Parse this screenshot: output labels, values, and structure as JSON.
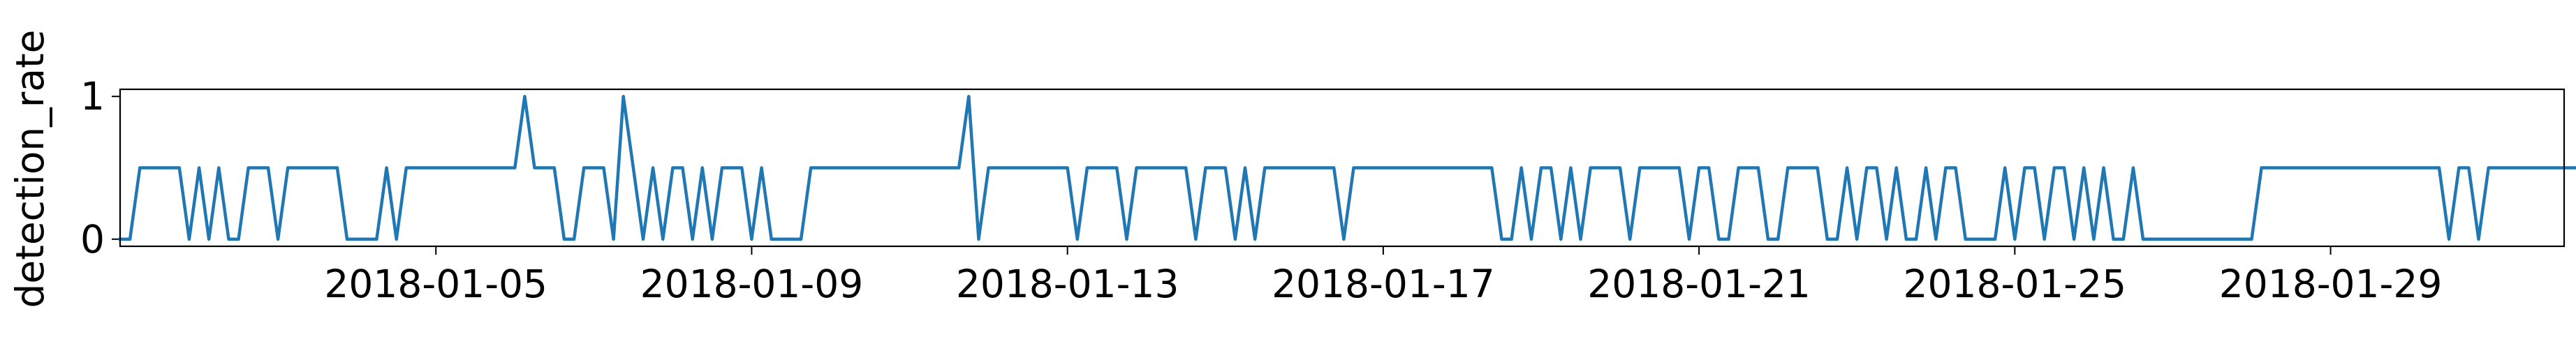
{
  "chart_data": {
    "type": "line",
    "title": "",
    "xlabel": "",
    "ylabel": "detection_rate",
    "x_start": "2018-01-01",
    "x_end": "2018-01-31",
    "xlim": [
      "2018-01-01T00:00",
      "2018-01-31T23:00"
    ],
    "ylim": [
      -0.05,
      1.05
    ],
    "x_ticks": [
      "2018-01-05",
      "2018-01-09",
      "2018-01-13",
      "2018-01-17",
      "2018-01-21",
      "2018-01-25",
      "2018-01-29"
    ],
    "y_ticks": [
      "0",
      "1"
    ],
    "grid": false,
    "legend": "none",
    "line_color": "#1f77b4",
    "series": [
      {
        "x_step_hours": 3,
        "values": [
          0,
          0,
          0.5,
          0.5,
          0.5,
          0.5,
          0.5,
          0,
          0.5,
          0,
          0.5,
          0,
          0,
          0.5,
          0.5,
          0.5,
          0,
          0.5,
          0.5,
          0.5,
          0.5,
          0.5,
          0.5,
          0,
          0,
          0,
          0,
          0.5,
          0,
          0.5,
          0.5,
          0.5,
          0.5,
          0.5,
          0.5,
          0.5,
          0.5,
          0.5,
          0.5,
          0.5,
          0.5,
          1,
          0.5,
          0.5,
          0.5,
          0,
          0,
          0.5,
          0.5,
          0.5,
          0,
          1,
          0.5,
          0,
          0.5,
          0,
          0.5,
          0.5,
          0,
          0.5,
          0,
          0.5,
          0.5,
          0.5,
          0,
          0.5,
          0,
          0,
          0,
          0,
          0.5,
          0.5,
          0.5,
          0.5,
          0.5,
          0.5,
          0.5,
          0.5,
          0.5,
          0.5,
          0.5,
          0.5,
          0.5,
          0.5,
          0.5,
          0.5,
          1,
          0,
          0.5,
          0.5,
          0.5,
          0.5,
          0.5,
          0.5,
          0.5,
          0.5,
          0.5,
          0,
          0.5,
          0.5,
          0.5,
          0.5,
          0,
          0.5,
          0.5,
          0.5,
          0.5,
          0.5,
          0.5,
          0,
          0.5,
          0.5,
          0.5,
          0,
          0.5,
          0,
          0.5,
          0.5,
          0.5,
          0.5,
          0.5,
          0.5,
          0.5,
          0.5,
          0,
          0.5,
          0.5,
          0.5,
          0.5,
          0.5,
          0.5,
          0.5,
          0.5,
          0.5,
          0.5,
          0.5,
          0.5,
          0.5,
          0.5,
          0.5,
          0,
          0,
          0.5,
          0,
          0.5,
          0.5,
          0,
          0.5,
          0,
          0.5,
          0.5,
          0.5,
          0.5,
          0,
          0.5,
          0.5,
          0.5,
          0.5,
          0.5,
          0,
          0.5,
          0.5,
          0,
          0,
          0.5,
          0.5,
          0.5,
          0,
          0,
          0.5,
          0.5,
          0.5,
          0.5,
          0,
          0,
          0.5,
          0,
          0.5,
          0.5,
          0,
          0.5,
          0,
          0,
          0.5,
          0,
          0.5,
          0.5,
          0,
          0,
          0,
          0,
          0.5,
          0,
          0.5,
          0.5,
          0,
          0.5,
          0.5,
          0,
          0.5,
          0,
          0.5,
          0,
          0,
          0.5,
          0,
          0,
          0,
          0,
          0,
          0,
          0,
          0,
          0,
          0,
          0,
          0,
          0.5,
          0.5,
          0.5,
          0.5,
          0.5,
          0.5,
          0.5,
          0.5,
          0.5,
          0.5,
          0.5,
          0.5,
          0.5,
          0.5,
          0.5,
          0.5,
          0.5,
          0.5,
          0.5,
          0,
          0.5,
          0.5,
          0,
          0.5,
          0.5,
          0.5,
          0.5,
          0.5,
          0.5,
          0.5,
          0.5,
          0.5,
          0.5,
          0.5,
          0.5,
          0.5,
          0.5,
          0.5,
          0.5,
          0.5,
          0.5,
          0.5,
          0.5,
          0,
          0,
          0.5,
          0.5,
          0,
          0.5,
          0,
          0.5,
          0,
          0.5,
          0,
          0.5,
          0.5,
          0.5,
          0.5,
          0.5,
          0.5,
          0.5,
          0.5,
          0.5,
          0.5,
          0.5,
          0,
          0.5,
          0,
          0,
          0.5,
          0,
          0.5,
          0,
          0,
          0,
          0,
          0,
          0,
          0,
          0,
          0,
          0,
          0,
          0,
          0.5,
          0,
          0,
          0,
          0,
          0.5,
          0,
          0,
          0.5,
          0.5,
          0.5,
          0,
          0.5,
          0.5,
          0.5,
          0.5,
          0.5,
          0,
          0.5,
          0.5,
          0,
          0.5,
          0,
          0,
          0.5,
          0,
          0.5,
          0,
          0,
          0,
          0,
          0,
          0.5,
          0.5,
          0.5,
          0,
          0,
          0,
          0,
          0,
          0,
          0,
          0,
          0,
          0,
          0,
          0,
          0,
          0,
          0,
          0,
          0.5,
          0.5,
          0,
          0.5,
          0.5,
          0.5,
          0.5,
          0.5,
          0.5,
          0,
          0.5,
          0.5,
          0,
          0.5,
          0.5,
          0.5,
          0.5,
          0,
          0.5,
          0,
          0.5,
          0.5,
          0.5,
          0,
          0.5,
          0,
          0.5,
          0.5,
          0.5,
          0.5,
          0.5,
          0.5,
          0.5,
          0.5,
          0.5,
          0.5,
          0.5,
          0.5,
          0.5,
          0.5,
          0.5,
          0,
          0.5,
          0.5,
          0,
          0.5,
          0.5,
          0.5,
          0.5,
          0,
          0.5,
          0.5,
          0.5,
          0.5,
          0.5,
          0.5,
          0.5,
          0.5,
          0.5,
          0.5,
          0.5,
          0.5,
          0.5,
          0,
          0.5,
          0,
          0.5,
          0.5,
          0.5,
          0.5,
          0,
          0.5,
          0.5,
          0.5,
          0,
          0.5,
          0.5,
          0.5,
          0.5,
          0.5,
          0.5,
          0.5,
          0.5,
          0.5,
          0.5,
          0.5,
          0.5,
          0.5,
          0.5,
          0.5,
          0.5,
          0.5,
          0.5,
          0,
          0.5,
          0.5,
          0.5,
          0,
          0.5,
          0.5,
          0,
          0.5,
          0.5,
          0,
          0,
          0.5,
          0.5,
          0,
          0,
          0.5,
          0.5,
          0,
          0.5,
          0.5,
          0.5,
          0.5,
          0,
          0.5,
          0.5,
          0,
          0.5,
          0.5,
          0,
          0.5,
          0.5,
          0,
          0,
          0.5,
          0.5,
          0.5,
          0.5,
          0.5,
          0.5,
          0.5,
          0.5,
          0.5,
          0.5,
          0.5,
          0.5,
          0.5,
          0.5,
          0.5,
          0.5,
          0.5,
          0.5,
          0.5,
          0.5,
          0.5,
          0.5,
          0.5,
          0.5,
          0.5,
          0.5,
          0.5,
          0.5,
          0.5,
          0,
          0.5,
          0.5,
          0,
          0,
          0.5,
          0.5,
          0.5,
          0.5,
          0.5,
          0.5,
          0,
          0,
          0,
          0.5,
          0.5,
          0.5,
          0.5,
          0.5,
          0.5,
          0.5,
          0,
          0,
          0,
          0,
          0,
          0,
          0,
          0.5,
          0,
          0,
          0,
          0,
          0.5,
          0,
          0,
          0,
          0.5,
          0,
          0,
          0,
          0,
          0,
          0,
          0.5,
          0,
          0,
          0,
          0,
          0.5,
          0.5,
          0,
          0.5,
          0.5,
          0,
          0.5,
          0.5,
          0.5,
          0,
          0,
          0.5,
          0.5,
          0,
          0.5,
          0.5,
          0,
          0,
          0.5,
          0.5,
          0,
          0.5,
          0,
          0,
          0.5,
          0,
          0.5,
          0.5,
          0.5,
          0.5,
          0,
          0.5,
          0.5,
          0,
          0.5,
          0.5,
          0.5,
          0,
          0.5,
          0,
          0.5,
          0.5,
          0,
          0.5,
          0.5,
          0,
          0.5,
          0.5,
          0,
          0.5,
          0.5,
          0.5,
          0.5,
          0,
          0.5,
          0.5
        ]
      }
    ]
  }
}
